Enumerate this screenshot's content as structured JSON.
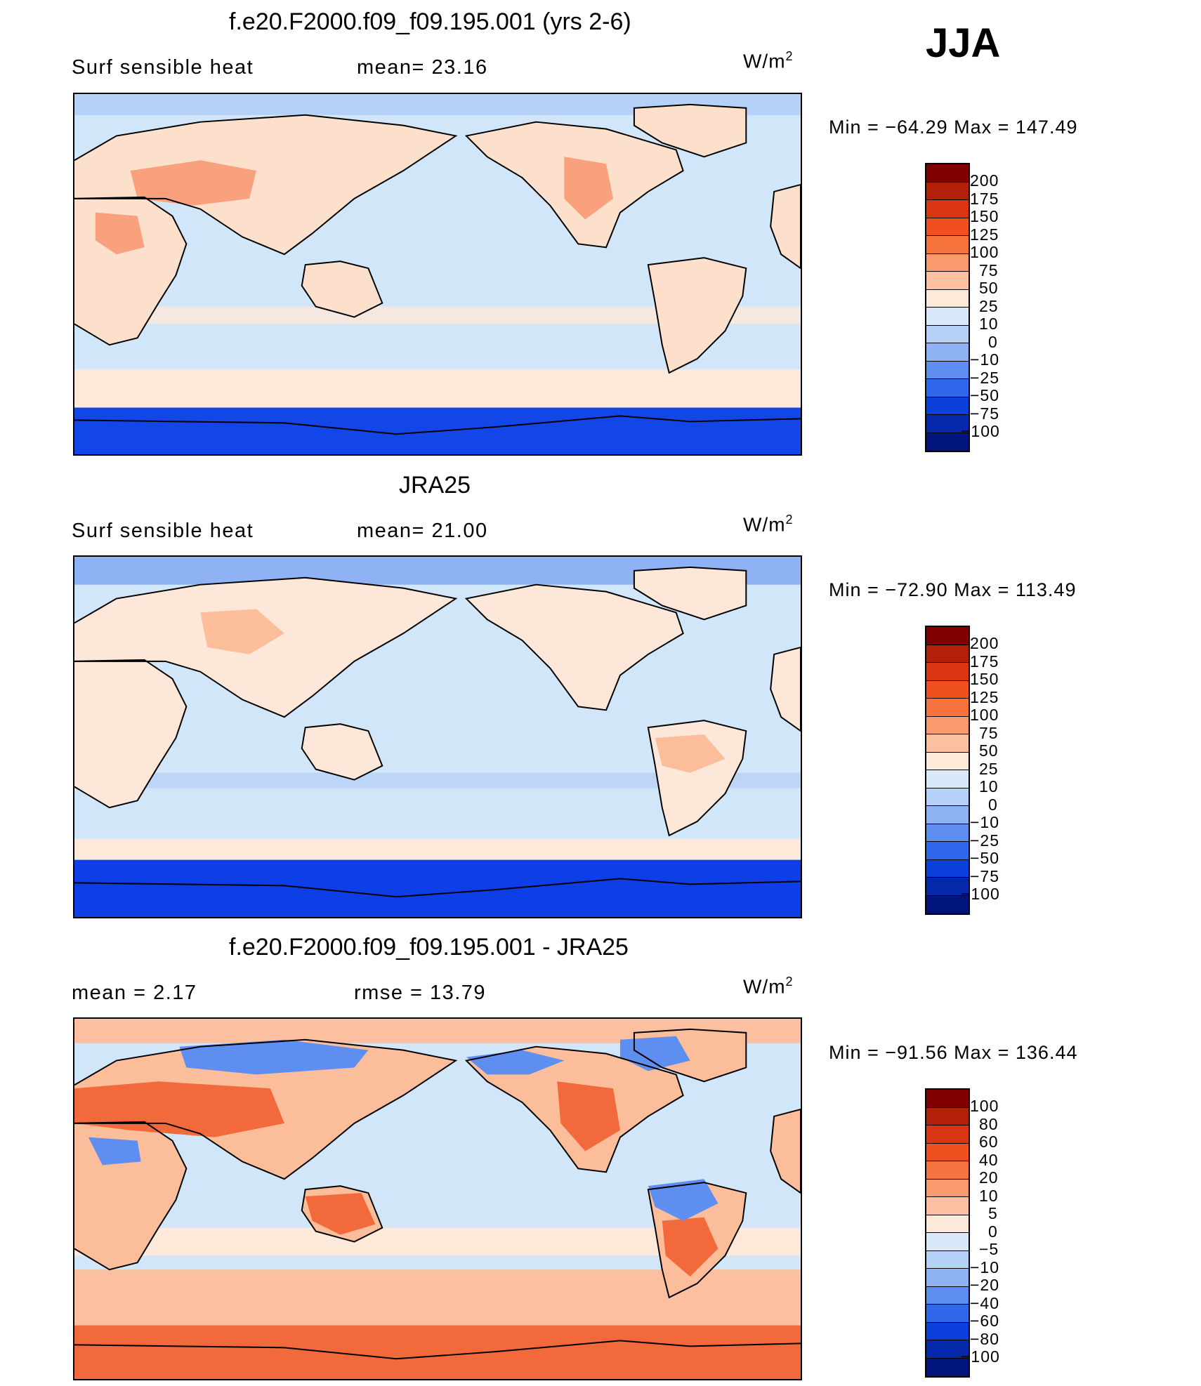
{
  "season": "JJA",
  "units_base": "W/m",
  "units_exp": "2",
  "panels": [
    {
      "title": "f.e20.F2000.f09_f09.195.001 (yrs 2-6)",
      "left_text": "Surf  sensible  heat",
      "right_text": "mean=   23.16",
      "minmax": "Min  =  −64.29  Max  =  147.49",
      "ocean_color": "#d2e6fa",
      "land_color": "#fde0cc",
      "hot_color": "#f9a07c",
      "south_color": "#1346e6"
    },
    {
      "title": "JRA25",
      "left_text": "Surf  sensible  heat",
      "right_text": "mean=   21.00",
      "minmax": "Min  =  −72.90  Max  =  113.49",
      "ocean_color": "#d2e6fa",
      "land_color": "#fde7d9",
      "hot_color": "#fbbd9a",
      "south_color": "#0d3ee6"
    },
    {
      "title": "f.e20.F2000.f09_f09.195.001 - JRA25",
      "left_text": "mean  =     2.17",
      "right_text": "rmse  =    13.79",
      "minmax": "Min  =  −91.56  Max  =  136.44",
      "ocean_color": "#d2e6fa",
      "land_color": "#fbbd9a",
      "hot_color": "#f26a3c",
      "south_color": "#f26a3c"
    }
  ],
  "chart_data": {
    "type": "heatmap",
    "projection": "global cylindrical equidistant, Pacific-centred",
    "variable": "Surf sensible heat",
    "season": "JJA",
    "units": "W/m2",
    "panels": [
      {
        "name": "f.e20.F2000.f09_f09.195.001 (yrs 2-6)",
        "mean": 23.16,
        "min": -64.29,
        "max": 147.49
      },
      {
        "name": "JRA25",
        "mean": 21.0,
        "min": -72.9,
        "max": 113.49
      },
      {
        "name": "f.e20.F2000.f09_f09.195.001 - JRA25",
        "mean": 2.17,
        "rmse": 13.79,
        "min": -91.56,
        "max": 136.44
      }
    ],
    "field_colorbar": {
      "labels": [
        "200",
        "175",
        "150",
        "125",
        "100",
        "75",
        "50",
        "25",
        "10",
        "0",
        "−10",
        "−25",
        "−50",
        "−75",
        "−100"
      ],
      "colors": [
        "#800000",
        "#b3200a",
        "#d93512",
        "#f04f20",
        "#f7733e",
        "#f99a6e",
        "#fcc0a0",
        "#fde9da",
        "#d8e8f8",
        "#b6d1f7",
        "#8eb2f4",
        "#5e8ff0",
        "#2f68ea",
        "#0c40dd",
        "#0528aa",
        "#00147a"
      ]
    },
    "diff_colorbar": {
      "labels": [
        "100",
        "80",
        "60",
        "40",
        "20",
        "10",
        "5",
        "0",
        "−5",
        "−10",
        "−20",
        "−40",
        "−60",
        "−80",
        "−100"
      ],
      "colors": [
        "#800000",
        "#b3200a",
        "#d93512",
        "#f04f20",
        "#f7733e",
        "#f99a6e",
        "#fcc0a0",
        "#fde9da",
        "#d8e8f8",
        "#b6d1f7",
        "#8eb2f4",
        "#5e8ff0",
        "#2f68ea",
        "#0c40dd",
        "#0528aa",
        "#00147a"
      ]
    }
  }
}
